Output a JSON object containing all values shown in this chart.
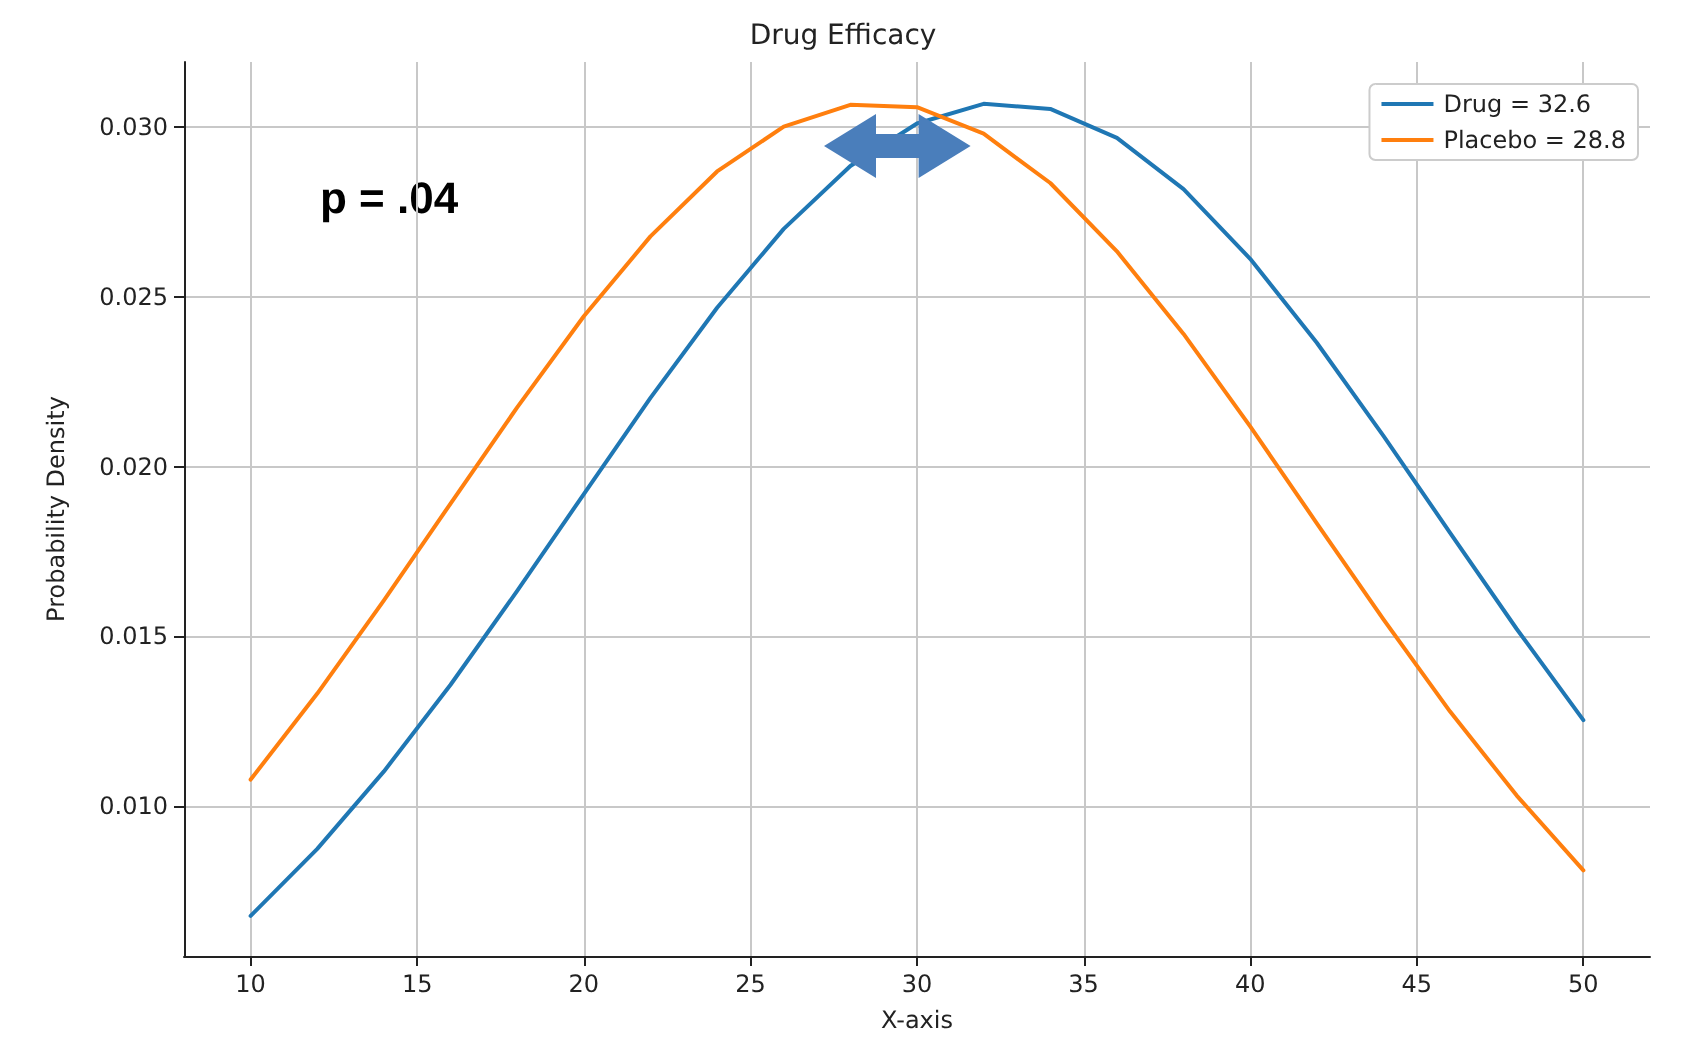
{
  "chart_data": {
    "type": "line",
    "title": "Drug Efficacy",
    "xlabel": "X-axis",
    "ylabel": "Probability Density",
    "annotations": [
      "p = .04"
    ],
    "x": [
      10,
      12,
      14,
      16,
      18,
      20,
      22,
      24,
      26,
      28,
      30,
      32,
      34,
      36,
      38,
      40,
      42,
      44,
      46,
      48,
      50
    ],
    "series": [
      {
        "name": "Drug = 32.6",
        "color": "#1f77b4",
        "values": [
          0.00678,
          0.00875,
          0.01103,
          0.01358,
          0.01634,
          0.01919,
          0.02202,
          0.02467,
          0.02699,
          0.02884,
          0.03009,
          0.03067,
          0.03052,
          0.02967,
          0.02816,
          0.02611,
          0.02364,
          0.0209,
          0.01805,
          0.01522,
          0.01254
        ]
      },
      {
        "name": "Placebo = 28.8",
        "color": "#ff7f0e",
        "values": [
          0.01079,
          0.01332,
          0.01606,
          0.01891,
          0.02174,
          0.02442,
          0.02677,
          0.02868,
          0.03,
          0.03064,
          0.03057,
          0.02979,
          0.02834,
          0.02633,
          0.0239,
          0.02118,
          0.01833,
          0.0155,
          0.01279,
          0.01032,
          0.00812
        ]
      }
    ],
    "xlim": [
      8,
      52
    ],
    "ylim": [
      0.0056,
      0.0319
    ],
    "xticks": [
      10,
      15,
      20,
      25,
      30,
      35,
      40,
      45,
      50
    ],
    "yticks": [
      {
        "value": 0.01,
        "label": "0.010"
      },
      {
        "value": 0.015,
        "label": "0.015"
      },
      {
        "value": 0.02,
        "label": "0.020"
      },
      {
        "value": 0.025,
        "label": "0.025"
      },
      {
        "value": 0.03,
        "label": "0.030"
      }
    ],
    "grid": true,
    "legend": "top right",
    "marker": "none",
    "line_style": "solid"
  }
}
